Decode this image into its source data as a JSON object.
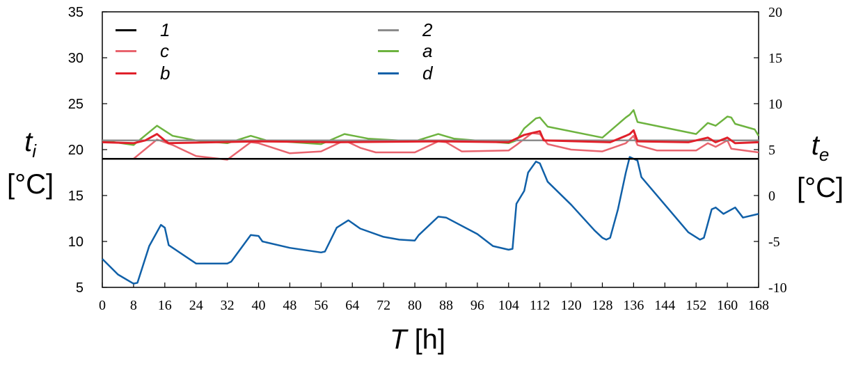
{
  "chart_data": {
    "type": "line",
    "xlabel_var": "T",
    "xlabel_unit": "[h]",
    "ylabel_left_var": "t",
    "ylabel_left_sub": "i",
    "ylabel_left_unit": "[°C]",
    "ylabel_right_var": "t",
    "ylabel_right_sub": "e",
    "ylabel_right_unit": "[°C]",
    "xlim": [
      0,
      168
    ],
    "ylim_left": [
      5,
      35
    ],
    "ylim_right": [
      -10,
      20
    ],
    "x_ticks": [
      "0",
      "8",
      "16",
      "24",
      "32",
      "40",
      "48",
      "56",
      "64",
      "72",
      "80",
      "88",
      "96",
      "104",
      "112",
      "120",
      "128",
      "136",
      "144",
      "152",
      "160",
      "168"
    ],
    "y_left_ticks": [
      "5",
      "10",
      "15",
      "20",
      "25",
      "30",
      "35"
    ],
    "y_right_ticks": [
      "-10",
      "-5",
      "0",
      "5",
      "10",
      "15",
      "20"
    ],
    "legend_position": "top",
    "series": [
      {
        "name": "1",
        "axis": "left",
        "color": "#000000",
        "x": [
          0,
          168
        ],
        "y": [
          19,
          19
        ]
      },
      {
        "name": "2",
        "axis": "left",
        "color": "#8c8c8c",
        "x": [
          0,
          168
        ],
        "y": [
          21,
          21
        ]
      },
      {
        "name": "c",
        "axis": "left",
        "color": "#e8646e",
        "x": [
          0,
          8,
          14,
          18,
          24,
          32,
          38,
          40,
          48,
          56,
          62,
          66,
          70,
          80,
          86,
          88,
          92,
          104,
          106,
          110,
          112,
          114,
          120,
          128,
          134,
          136,
          137,
          142,
          152,
          155,
          157,
          160,
          161,
          168
        ],
        "y": [
          19,
          19,
          21.1,
          20.5,
          19.3,
          18.9,
          20.8,
          20.7,
          19.6,
          19.8,
          21,
          20.2,
          19.7,
          19.7,
          20.9,
          20.8,
          19.8,
          19.9,
          20.5,
          21.8,
          21.7,
          20.6,
          20,
          19.8,
          20.7,
          21.5,
          20.5,
          19.9,
          19.9,
          20.7,
          20.3,
          21,
          20.1,
          19.7
        ]
      },
      {
        "name": "a",
        "axis": "left",
        "color": "#6db33f",
        "x": [
          0,
          8,
          14,
          18,
          24,
          32,
          38,
          42,
          56,
          62,
          68,
          80,
          86,
          90,
          104,
          106,
          108,
          111,
          112,
          114,
          128,
          134,
          135,
          136,
          137,
          152,
          155,
          157,
          160,
          161,
          162,
          167,
          168
        ],
        "y": [
          21,
          20.5,
          22.6,
          21.5,
          21,
          20.7,
          21.5,
          21,
          20.6,
          21.7,
          21.2,
          20.9,
          21.7,
          21.2,
          20.7,
          21,
          22.3,
          23.4,
          23.5,
          22.5,
          21.3,
          23.5,
          23.8,
          24.3,
          23,
          21.7,
          22.9,
          22.6,
          23.6,
          23.5,
          22.8,
          22.2,
          21.5
        ]
      },
      {
        "name": "b",
        "axis": "left",
        "color": "#e0202a",
        "x": [
          0,
          8,
          11,
          14,
          16,
          17,
          40,
          60,
          86,
          104,
          108,
          110,
          112,
          113,
          130,
          134,
          135,
          136,
          137,
          150,
          155,
          157,
          160,
          161,
          162,
          168
        ],
        "y": [
          20.8,
          20.7,
          21,
          21.7,
          21,
          20.7,
          20.9,
          20.8,
          20.9,
          20.8,
          21.6,
          21.8,
          22,
          21,
          20.8,
          21.5,
          21.7,
          22.1,
          20.9,
          20.8,
          21.3,
          20.8,
          21.3,
          21,
          20.7,
          20.8
        ]
      },
      {
        "name": "d",
        "axis": "right",
        "color": "#1060a8",
        "x": [
          0,
          4,
          8,
          9,
          12,
          15,
          16,
          17,
          24,
          32,
          33,
          38,
          40,
          41,
          48,
          56,
          57,
          60,
          63,
          66,
          72,
          76,
          80,
          81,
          86,
          88,
          96,
          100,
          104,
          105,
          106,
          108,
          109,
          111,
          112,
          114,
          120,
          126,
          128,
          129,
          130,
          132,
          134,
          135,
          137,
          138,
          144,
          150,
          153,
          154,
          156,
          157,
          159,
          162,
          164,
          168
        ],
        "y": [
          -6.9,
          -8.6,
          -9.6,
          -9.5,
          -5.5,
          -3.2,
          -3.5,
          -5.4,
          -7.4,
          -7.4,
          -7.2,
          -4.3,
          -4.4,
          -5,
          -5.7,
          -6.2,
          -6.1,
          -3.5,
          -2.7,
          -3.6,
          -4.5,
          -4.8,
          -4.9,
          -4.3,
          -2.3,
          -2.4,
          -4.2,
          -5.5,
          -5.9,
          -5.8,
          -0.9,
          0.5,
          2.5,
          3.7,
          3.5,
          1.5,
          -1,
          -3.8,
          -4.6,
          -4.8,
          -4.6,
          -1.5,
          2.5,
          4.2,
          3.8,
          2,
          -1,
          -4,
          -4.8,
          -4.6,
          -1.5,
          -1.3,
          -2,
          -1.3,
          -2.4,
          -2
        ]
      }
    ]
  }
}
